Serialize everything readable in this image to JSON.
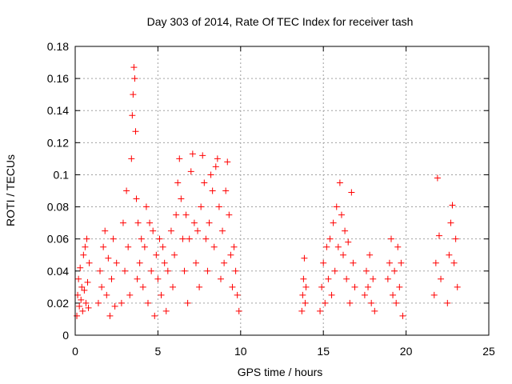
{
  "chart_data": {
    "type": "scatter",
    "title": "Day 303 of 2014, Rate Of TEC Index for receiver tash",
    "xlabel": "GPS time / hours",
    "ylabel": "ROTI / TECUs",
    "xlim": [
      0,
      25
    ],
    "ylim": [
      0,
      0.18
    ],
    "xticks": [
      0,
      5,
      10,
      15,
      20,
      25
    ],
    "xtick_labels": [
      "0",
      "5",
      "10",
      "15",
      "20",
      "25"
    ],
    "yticks": [
      0,
      0.02,
      0.04,
      0.06,
      0.08,
      0.1,
      0.12,
      0.14,
      0.16,
      0.18
    ],
    "ytick_labels": [
      "0",
      "0.02",
      "0.04",
      "0.06",
      "0.08",
      "0.1",
      "0.12",
      "0.14",
      "0.16",
      "0.18"
    ],
    "grid": true,
    "marker": "+",
    "marker_color": "#ff0000",
    "series": [
      {
        "name": "ROTI",
        "points": [
          [
            0.1,
            0.012
          ],
          [
            0.15,
            0.025
          ],
          [
            0.2,
            0.035
          ],
          [
            0.25,
            0.018
          ],
          [
            0.3,
            0.042
          ],
          [
            0.35,
            0.022
          ],
          [
            0.4,
            0.03
          ],
          [
            0.45,
            0.015
          ],
          [
            0.5,
            0.05
          ],
          [
            0.55,
            0.028
          ],
          [
            0.6,
            0.055
          ],
          [
            0.65,
            0.02
          ],
          [
            0.7,
            0.06
          ],
          [
            0.75,
            0.033
          ],
          [
            0.8,
            0.017
          ],
          [
            0.85,
            0.045
          ],
          [
            1.4,
            0.02
          ],
          [
            1.5,
            0.04
          ],
          [
            1.6,
            0.03
          ],
          [
            1.7,
            0.055
          ],
          [
            1.8,
            0.065
          ],
          [
            1.9,
            0.025
          ],
          [
            2.0,
            0.048
          ],
          [
            2.1,
            0.012
          ],
          [
            2.2,
            0.035
          ],
          [
            2.3,
            0.06
          ],
          [
            2.4,
            0.018
          ],
          [
            2.5,
            0.045
          ],
          [
            2.8,
            0.02
          ],
          [
            2.9,
            0.07
          ],
          [
            3.0,
            0.04
          ],
          [
            3.1,
            0.09
          ],
          [
            3.2,
            0.055
          ],
          [
            3.3,
            0.025
          ],
          [
            3.4,
            0.11
          ],
          [
            3.45,
            0.137
          ],
          [
            3.5,
            0.15
          ],
          [
            3.55,
            0.167
          ],
          [
            3.6,
            0.16
          ],
          [
            3.65,
            0.127
          ],
          [
            3.7,
            0.085
          ],
          [
            3.75,
            0.035
          ],
          [
            3.8,
            0.07
          ],
          [
            3.9,
            0.045
          ],
          [
            4.0,
            0.06
          ],
          [
            4.1,
            0.03
          ],
          [
            4.2,
            0.055
          ],
          [
            4.3,
            0.08
          ],
          [
            4.4,
            0.02
          ],
          [
            4.5,
            0.07
          ],
          [
            4.6,
            0.04
          ],
          [
            4.7,
            0.065
          ],
          [
            4.8,
            0.012
          ],
          [
            4.9,
            0.05
          ],
          [
            5.0,
            0.035
          ],
          [
            5.1,
            0.06
          ],
          [
            5.2,
            0.025
          ],
          [
            5.3,
            0.055
          ],
          [
            5.4,
            0.045
          ],
          [
            5.5,
            0.015
          ],
          [
            5.6,
            0.04
          ],
          [
            5.8,
            0.065
          ],
          [
            5.9,
            0.03
          ],
          [
            6.0,
            0.05
          ],
          [
            6.1,
            0.075
          ],
          [
            6.2,
            0.095
          ],
          [
            6.3,
            0.11
          ],
          [
            6.4,
            0.085
          ],
          [
            6.5,
            0.06
          ],
          [
            6.6,
            0.04
          ],
          [
            6.7,
            0.075
          ],
          [
            6.8,
            0.02
          ],
          [
            6.9,
            0.06
          ],
          [
            7.0,
            0.102
          ],
          [
            7.1,
            0.113
          ],
          [
            7.2,
            0.07
          ],
          [
            7.3,
            0.045
          ],
          [
            7.4,
            0.065
          ],
          [
            7.5,
            0.03
          ],
          [
            7.6,
            0.08
          ],
          [
            7.7,
            0.112
          ],
          [
            7.8,
            0.095
          ],
          [
            7.9,
            0.06
          ],
          [
            8.0,
            0.04
          ],
          [
            8.1,
            0.07
          ],
          [
            8.2,
            0.1
          ],
          [
            8.3,
            0.09
          ],
          [
            8.4,
            0.055
          ],
          [
            8.5,
            0.105
          ],
          [
            8.6,
            0.11
          ],
          [
            8.7,
            0.08
          ],
          [
            8.8,
            0.035
          ],
          [
            8.9,
            0.065
          ],
          [
            9.0,
            0.045
          ],
          [
            9.1,
            0.09
          ],
          [
            9.2,
            0.108
          ],
          [
            9.3,
            0.075
          ],
          [
            9.4,
            0.05
          ],
          [
            9.5,
            0.03
          ],
          [
            9.6,
            0.055
          ],
          [
            9.7,
            0.04
          ],
          [
            9.8,
            0.025
          ],
          [
            9.9,
            0.015
          ],
          [
            13.7,
            0.015
          ],
          [
            13.75,
            0.025
          ],
          [
            13.8,
            0.035
          ],
          [
            13.85,
            0.048
          ],
          [
            13.9,
            0.02
          ],
          [
            13.95,
            0.03
          ],
          [
            14.8,
            0.015
          ],
          [
            14.9,
            0.03
          ],
          [
            15.0,
            0.045
          ],
          [
            15.1,
            0.02
          ],
          [
            15.2,
            0.055
          ],
          [
            15.3,
            0.035
          ],
          [
            15.4,
            0.06
          ],
          [
            15.5,
            0.025
          ],
          [
            15.6,
            0.07
          ],
          [
            15.7,
            0.04
          ],
          [
            15.8,
            0.08
          ],
          [
            15.9,
            0.055
          ],
          [
            16.0,
            0.095
          ],
          [
            16.1,
            0.075
          ],
          [
            16.2,
            0.05
          ],
          [
            16.3,
            0.065
          ],
          [
            16.4,
            0.035
          ],
          [
            16.5,
            0.058
          ],
          [
            16.6,
            0.02
          ],
          [
            16.7,
            0.089
          ],
          [
            16.8,
            0.045
          ],
          [
            16.9,
            0.03
          ],
          [
            17.5,
            0.025
          ],
          [
            17.6,
            0.04
          ],
          [
            17.7,
            0.03
          ],
          [
            17.8,
            0.05
          ],
          [
            17.9,
            0.02
          ],
          [
            18.0,
            0.035
          ],
          [
            18.1,
            0.015
          ],
          [
            18.9,
            0.035
          ],
          [
            19.0,
            0.045
          ],
          [
            19.1,
            0.06
          ],
          [
            19.2,
            0.025
          ],
          [
            19.3,
            0.04
          ],
          [
            19.4,
            0.02
          ],
          [
            19.5,
            0.055
          ],
          [
            19.6,
            0.03
          ],
          [
            19.7,
            0.045
          ],
          [
            19.8,
            0.012
          ],
          [
            21.7,
            0.025
          ],
          [
            21.8,
            0.045
          ],
          [
            21.9,
            0.098
          ],
          [
            22.0,
            0.062
          ],
          [
            22.1,
            0.035
          ],
          [
            22.5,
            0.02
          ],
          [
            22.6,
            0.05
          ],
          [
            22.7,
            0.07
          ],
          [
            22.8,
            0.081
          ],
          [
            22.9,
            0.045
          ],
          [
            23.0,
            0.06
          ],
          [
            23.1,
            0.03
          ]
        ]
      }
    ]
  }
}
